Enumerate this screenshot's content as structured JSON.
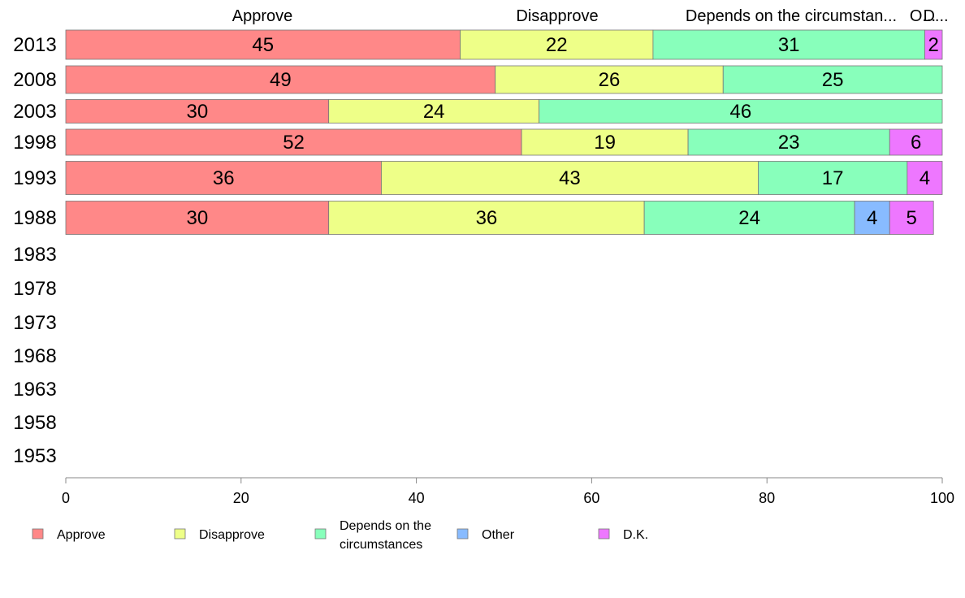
{
  "chart_data": {
    "type": "bar",
    "orientation": "horizontal",
    "stacked": true,
    "categories": [
      "2013",
      "2008",
      "2003",
      "1998",
      "1993",
      "1988",
      "1983",
      "1978",
      "1973",
      "1968",
      "1963",
      "1958",
      "1953"
    ],
    "series": [
      {
        "name": "Approve",
        "color": "#ff8888",
        "values": [
          45,
          49,
          30,
          52,
          36,
          30,
          null,
          null,
          null,
          null,
          null,
          null,
          null
        ]
      },
      {
        "name": "Disapprove",
        "color": "#eeff88",
        "values": [
          22,
          26,
          24,
          19,
          43,
          36,
          null,
          null,
          null,
          null,
          null,
          null,
          null
        ]
      },
      {
        "name": "Depends on the circumstances",
        "color": "#88ffbb",
        "values": [
          31,
          25,
          46,
          23,
          17,
          24,
          null,
          null,
          null,
          null,
          null,
          null,
          null
        ]
      },
      {
        "name": "Other",
        "color": "#88bbff",
        "values": [
          0,
          0,
          0,
          0,
          0,
          4,
          null,
          null,
          null,
          null,
          null,
          null,
          null
        ]
      },
      {
        "name": "D.K.",
        "color": "#ee77ff",
        "values": [
          2,
          0,
          0,
          6,
          4,
          5,
          null,
          null,
          null,
          null,
          null,
          null,
          null
        ]
      }
    ],
    "column_headers": [
      "Approve",
      "Disapprove",
      "Depends on the circumstan...",
      "O...",
      "D..."
    ],
    "legend_labels": [
      "Approve",
      "Disapprove",
      "Depends on the circumstances",
      "Other",
      "D.K."
    ],
    "xlim": [
      0,
      100
    ],
    "xticks": [
      0,
      20,
      40,
      60,
      80,
      100
    ],
    "legend_position": "bottom",
    "grid": false
  }
}
